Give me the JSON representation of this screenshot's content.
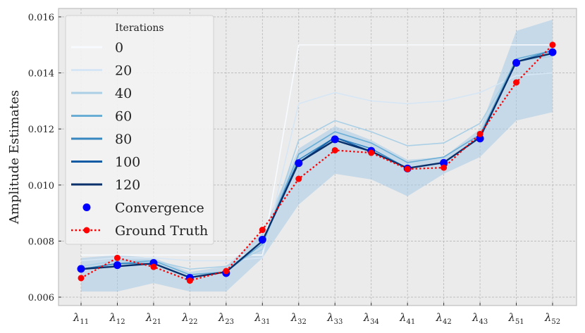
{
  "chart_data": {
    "type": "line",
    "title": "",
    "xlabel": "",
    "ylabel": "Amplitude Estimates",
    "categories": [
      "λ11",
      "λ12",
      "λ21",
      "λ22",
      "λ23",
      "λ31",
      "λ32",
      "λ33",
      "λ34",
      "λ41",
      "λ42",
      "λ43",
      "λ51",
      "λ52"
    ],
    "category_labels": [
      {
        "base": "λ",
        "sub": "11"
      },
      {
        "base": "λ",
        "sub": "12"
      },
      {
        "base": "λ",
        "sub": "21"
      },
      {
        "base": "λ",
        "sub": "22"
      },
      {
        "base": "λ",
        "sub": "23"
      },
      {
        "base": "λ",
        "sub": "31"
      },
      {
        "base": "λ",
        "sub": "32"
      },
      {
        "base": "λ",
        "sub": "33"
      },
      {
        "base": "λ",
        "sub": "34"
      },
      {
        "base": "λ",
        "sub": "41"
      },
      {
        "base": "λ",
        "sub": "42"
      },
      {
        "base": "λ",
        "sub": "43"
      },
      {
        "base": "λ",
        "sub": "51"
      },
      {
        "base": "λ",
        "sub": "52"
      }
    ],
    "ylim": [
      0.0057,
      0.0163
    ],
    "yticks": [
      "0.006",
      "0.008",
      "0.010",
      "0.012",
      "0.014",
      "0.016"
    ],
    "ytick_values": [
      0.006,
      0.008,
      0.01,
      0.012,
      0.014,
      0.016
    ],
    "grid": true,
    "legend_position": "top-left",
    "legend_title": "Iterations",
    "iteration_series": [
      {
        "name": "0",
        "color": "#f7fbff",
        "values": [
          0.0075,
          0.0075,
          0.0075,
          0.0075,
          0.0075,
          0.0075,
          0.015,
          0.015,
          0.015,
          0.015,
          0.015,
          0.015,
          0.015,
          0.015
        ]
      },
      {
        "name": "20",
        "color": "#d6e6f4",
        "values": [
          0.0073,
          0.0074,
          0.0074,
          0.0073,
          0.0073,
          0.0074,
          0.0129,
          0.0133,
          0.013,
          0.0129,
          0.013,
          0.0133,
          0.0139,
          0.014
        ]
      },
      {
        "name": "40",
        "color": "#abd0e6",
        "values": [
          0.0071,
          0.0073,
          0.0073,
          0.007,
          0.0071,
          0.0077,
          0.0116,
          0.0123,
          0.0119,
          0.0114,
          0.0115,
          0.0122,
          0.0144,
          0.0146
        ]
      },
      {
        "name": "60",
        "color": "#6aaed6",
        "values": [
          0.007,
          0.0072,
          0.0073,
          0.0068,
          0.0069,
          0.0079,
          0.0111,
          0.0119,
          0.0115,
          0.0108,
          0.011,
          0.0118,
          0.0145,
          0.0148
        ]
      },
      {
        "name": "80",
        "color": "#3787c0",
        "values": [
          0.007,
          0.0072,
          0.0072,
          0.0067,
          0.0069,
          0.008,
          0.0109,
          0.0117,
          0.0113,
          0.0106,
          0.0108,
          0.0117,
          0.0144,
          0.0148
        ]
      },
      {
        "name": "100",
        "color": "#105ba4",
        "values": [
          0.007,
          0.0071,
          0.0072,
          0.0067,
          0.0069,
          0.008,
          0.0108,
          0.0117,
          0.0112,
          0.0106,
          0.0108,
          0.0117,
          0.0144,
          0.0147
        ]
      },
      {
        "name": "120",
        "color": "#08306b",
        "values": [
          0.007,
          0.0071,
          0.0072,
          0.0067,
          0.0069,
          0.008,
          0.0108,
          0.0116,
          0.0112,
          0.0106,
          0.0108,
          0.0117,
          0.0144,
          0.0147
        ]
      }
    ],
    "band_upper": [
      0.0074,
      0.0075,
      0.0074,
      0.0069,
      0.0071,
      0.0083,
      0.0113,
      0.0121,
      0.0116,
      0.0109,
      0.011,
      0.012,
      0.0155,
      0.0159
    ],
    "band_lower": [
      0.0062,
      0.0062,
      0.0065,
      0.0062,
      0.0062,
      0.0074,
      0.0093,
      0.0104,
      0.0102,
      0.0096,
      0.0104,
      0.011,
      0.0123,
      0.0126
    ],
    "series": [
      {
        "name": "Convergence",
        "color": "#0000ff",
        "values": [
          0.00701,
          0.00714,
          0.00722,
          0.00669,
          0.00686,
          0.00805,
          0.01078,
          0.01163,
          0.01122,
          0.01059,
          0.01079,
          0.01166,
          0.01436,
          0.01474
        ]
      },
      {
        "name": "Ground Truth",
        "color": "#ff0000",
        "values": [
          0.00668,
          0.0074,
          0.00708,
          0.00659,
          0.00693,
          0.0084,
          0.01022,
          0.01124,
          0.01115,
          0.01057,
          0.01062,
          0.01182,
          0.01366,
          0.015
        ]
      }
    ]
  }
}
